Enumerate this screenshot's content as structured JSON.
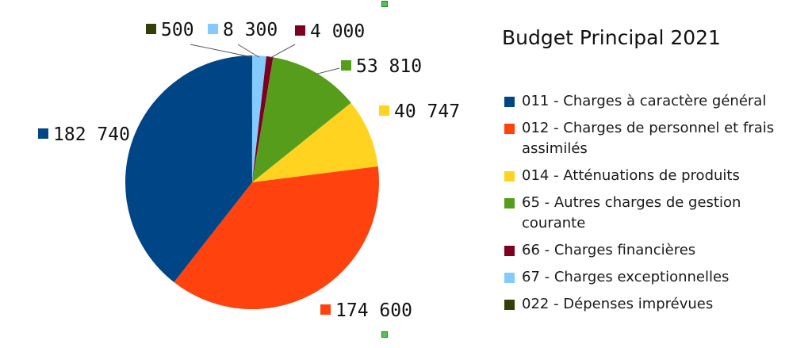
{
  "chart_data": {
    "type": "pie",
    "title": "Budget Principal 2021",
    "slices": [
      {
        "label": "011 - Charges à caractère général",
        "value": 182740,
        "display": "182 740",
        "color": "#004586"
      },
      {
        "label": "012 - Charges de personnel et frais assimilés",
        "value": 174600,
        "display": "174 600",
        "color": "#ff420e"
      },
      {
        "label": "014 - Atténuations de produits",
        "value": 40747,
        "display": "40 747",
        "color": "#ffd320"
      },
      {
        "label": "65 - Autres charges de gestion courante",
        "value": 53810,
        "display": "53 810",
        "color": "#579d1c"
      },
      {
        "label": "66 - Charges financières",
        "value": 4000,
        "display": "4 000",
        "color": "#7e0021"
      },
      {
        "label": "67 - Charges exceptionnelles",
        "value": 8300,
        "display": "8 300",
        "color": "#83caff"
      },
      {
        "label": "022 - Dépenses imprévues",
        "value": 500,
        "display": "500",
        "color": "#314004"
      }
    ],
    "legend_position": "right"
  }
}
